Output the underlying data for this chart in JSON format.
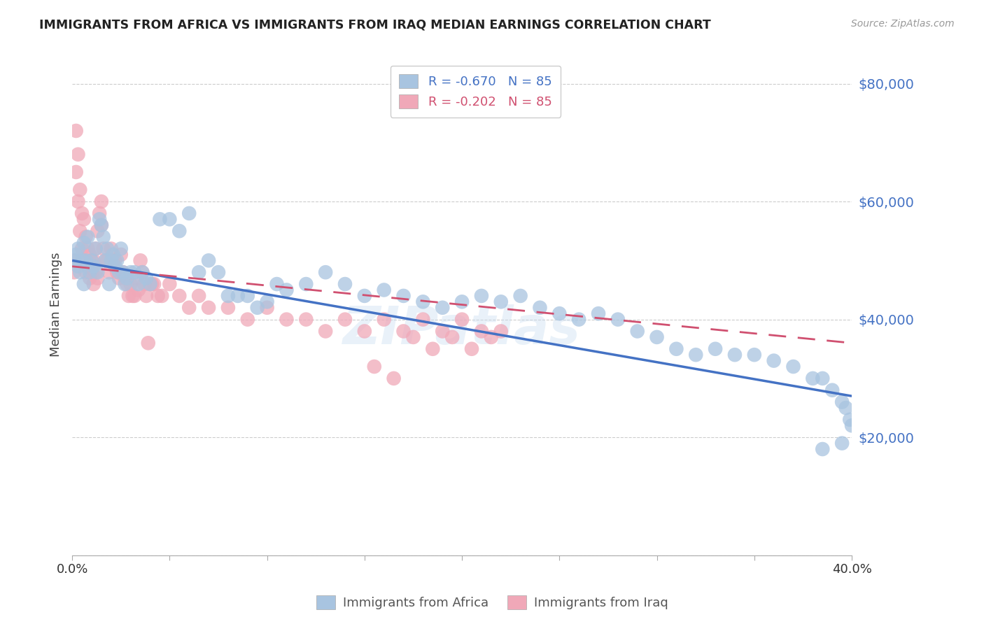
{
  "title": "IMMIGRANTS FROM AFRICA VS IMMIGRANTS FROM IRAQ MEDIAN EARNINGS CORRELATION CHART",
  "source": "Source: ZipAtlas.com",
  "ylabel": "Median Earnings",
  "yticks": [
    0,
    20000,
    40000,
    60000,
    80000
  ],
  "ytick_labels": [
    "",
    "$20,000",
    "$40,000",
    "$60,000",
    "$80,000"
  ],
  "xlim": [
    0.0,
    0.4
  ],
  "ylim": [
    0,
    85000
  ],
  "legend_r_africa": "R = -0.670",
  "legend_n_africa": "N = 85",
  "legend_r_iraq": "R = -0.202",
  "legend_n_iraq": "N = 85",
  "legend_label_africa": "Immigrants from Africa",
  "legend_label_iraq": "Immigrants from Iraq",
  "color_africa": "#a8c4e0",
  "color_iraq": "#f0a8b8",
  "color_africa_line": "#4472c4",
  "color_iraq_line": "#d05070",
  "color_ytick_labels": "#4472c4",
  "watermark_text": "ZIPatlas",
  "africa_line_x": [
    0.0,
    0.4
  ],
  "africa_line_y": [
    50000,
    27000
  ],
  "iraq_line_x": [
    0.0,
    0.4
  ],
  "iraq_line_y": [
    49000,
    36000
  ],
  "africa_x": [
    0.001,
    0.002,
    0.003,
    0.003,
    0.004,
    0.005,
    0.006,
    0.006,
    0.007,
    0.008,
    0.009,
    0.01,
    0.011,
    0.012,
    0.013,
    0.014,
    0.015,
    0.016,
    0.017,
    0.018,
    0.019,
    0.02,
    0.021,
    0.022,
    0.023,
    0.024,
    0.025,
    0.026,
    0.027,
    0.028,
    0.03,
    0.032,
    0.034,
    0.036,
    0.038,
    0.04,
    0.045,
    0.05,
    0.055,
    0.06,
    0.065,
    0.07,
    0.075,
    0.08,
    0.085,
    0.09,
    0.095,
    0.1,
    0.105,
    0.11,
    0.12,
    0.13,
    0.14,
    0.15,
    0.16,
    0.17,
    0.18,
    0.19,
    0.2,
    0.21,
    0.22,
    0.23,
    0.24,
    0.25,
    0.26,
    0.27,
    0.28,
    0.29,
    0.3,
    0.31,
    0.32,
    0.33,
    0.34,
    0.35,
    0.36,
    0.37,
    0.38,
    0.385,
    0.39,
    0.395,
    0.397,
    0.399,
    0.4,
    0.395,
    0.385
  ],
  "africa_y": [
    50000,
    51000,
    49000,
    52000,
    48000,
    50000,
    53000,
    46000,
    50000,
    54000,
    48000,
    50000,
    49000,
    52000,
    48000,
    57000,
    56000,
    54000,
    50000,
    52000,
    46000,
    50000,
    51000,
    49000,
    50000,
    48000,
    52000,
    48000,
    46000,
    47000,
    48000,
    48000,
    46000,
    48000,
    47000,
    46000,
    57000,
    57000,
    55000,
    58000,
    48000,
    50000,
    48000,
    44000,
    44000,
    44000,
    42000,
    43000,
    46000,
    45000,
    46000,
    48000,
    46000,
    44000,
    45000,
    44000,
    43000,
    42000,
    43000,
    44000,
    43000,
    44000,
    42000,
    41000,
    40000,
    41000,
    40000,
    38000,
    37000,
    35000,
    34000,
    35000,
    34000,
    34000,
    33000,
    32000,
    30000,
    30000,
    28000,
    26000,
    25000,
    23000,
    22000,
    19000,
    18000
  ],
  "iraq_x": [
    0.001,
    0.001,
    0.002,
    0.002,
    0.003,
    0.003,
    0.004,
    0.004,
    0.005,
    0.005,
    0.006,
    0.006,
    0.007,
    0.007,
    0.008,
    0.008,
    0.009,
    0.009,
    0.01,
    0.01,
    0.011,
    0.011,
    0.012,
    0.012,
    0.013,
    0.013,
    0.014,
    0.015,
    0.015,
    0.016,
    0.017,
    0.018,
    0.019,
    0.02,
    0.021,
    0.022,
    0.023,
    0.024,
    0.025,
    0.026,
    0.027,
    0.028,
    0.029,
    0.03,
    0.031,
    0.032,
    0.033,
    0.034,
    0.035,
    0.036,
    0.037,
    0.038,
    0.039,
    0.04,
    0.041,
    0.042,
    0.044,
    0.046,
    0.05,
    0.055,
    0.06,
    0.065,
    0.07,
    0.08,
    0.09,
    0.1,
    0.11,
    0.12,
    0.13,
    0.14,
    0.15,
    0.16,
    0.17,
    0.18,
    0.19,
    0.2,
    0.21,
    0.22,
    0.155,
    0.165,
    0.175,
    0.185,
    0.195,
    0.205,
    0.215
  ],
  "iraq_y": [
    50000,
    48000,
    72000,
    65000,
    68000,
    60000,
    62000,
    55000,
    58000,
    52000,
    57000,
    50000,
    54000,
    48000,
    52000,
    49000,
    51000,
    47000,
    50000,
    48000,
    50000,
    46000,
    52000,
    48000,
    55000,
    47000,
    58000,
    60000,
    56000,
    52000,
    50000,
    50000,
    48000,
    52000,
    50000,
    50000,
    48000,
    47000,
    51000,
    48000,
    47000,
    46000,
    44000,
    46000,
    44000,
    44000,
    47000,
    45000,
    50000,
    48000,
    46000,
    44000,
    36000,
    46000,
    46000,
    46000,
    44000,
    44000,
    46000,
    44000,
    42000,
    44000,
    42000,
    42000,
    40000,
    42000,
    40000,
    40000,
    38000,
    40000,
    38000,
    40000,
    38000,
    40000,
    38000,
    40000,
    38000,
    38000,
    32000,
    30000,
    37000,
    35000,
    37000,
    35000,
    37000
  ]
}
